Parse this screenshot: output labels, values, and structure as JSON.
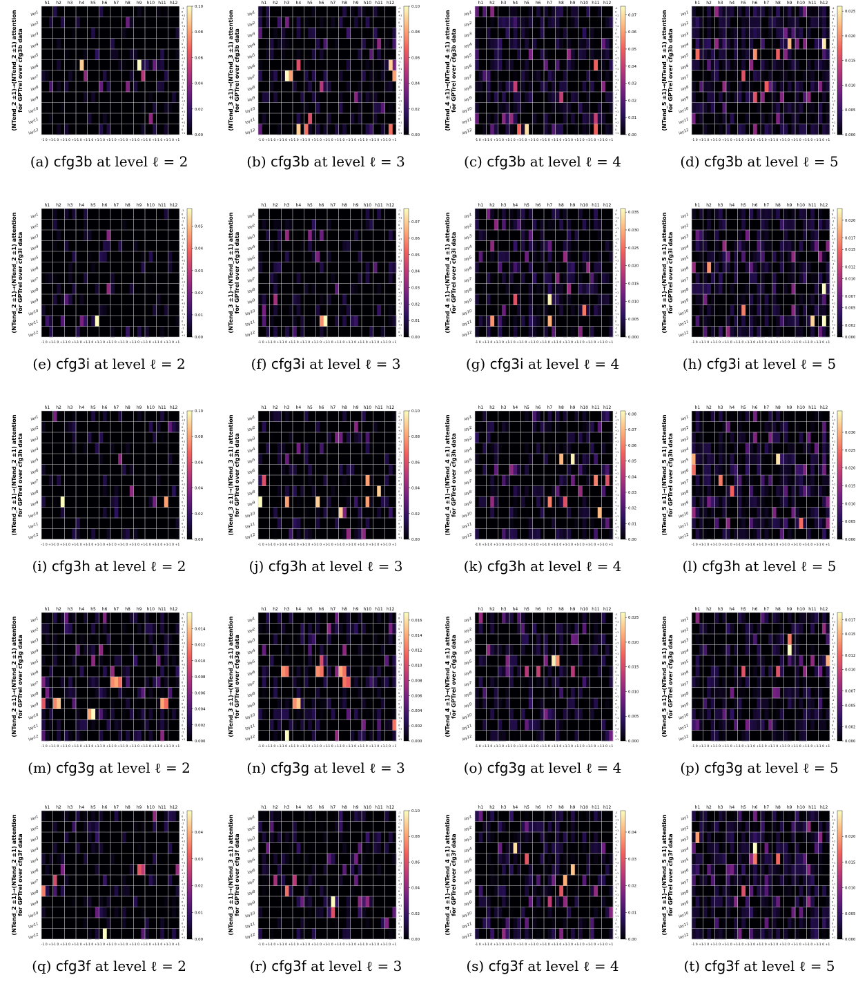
{
  "layout_grid": {
    "cols": 4,
    "rows": 5
  },
  "colormap": [
    "#000004",
    "#2c115f",
    "#721f81",
    "#b73779",
    "#f1605d",
    "#feb078",
    "#fcfdbf"
  ],
  "common": {
    "heads": [
      "h1",
      "h2",
      "h3",
      "h4",
      "h5",
      "h6",
      "h7",
      "h8",
      "h9",
      "h10",
      "h11",
      "h12"
    ],
    "layers": [
      "lay1",
      "lay2",
      "lay3",
      "lay4",
      "lay5",
      "lay6",
      "lay7",
      "lay8",
      "lay9",
      "lay10",
      "lay11",
      "lay12"
    ],
    "bottom_tick": "-1 0 +1",
    "colorbar_side_tick": [
      "-1",
      "0",
      "+1"
    ],
    "ylabel_line2_prefix": "for GPTrel over ",
    "ylabel_line2_suffix": " data"
  },
  "chart_data": [
    {
      "id": "a",
      "dataset": "cfg3b",
      "level": 2,
      "type": "heatmap",
      "ylabel": "(NTend_2 ±1)→(NTend_2 ±1) attention",
      "colorbar_ticks": [
        "0.10",
        "0.08",
        "0.06",
        "0.04",
        "0.02",
        "0.00"
      ],
      "vmax": 0.1,
      "seed": 11,
      "density": 0.18,
      "hot": [
        [
          5,
          3,
          1,
          0.09
        ],
        [
          5,
          8,
          1,
          0.1
        ],
        [
          6,
          3,
          2,
          0.04
        ],
        [
          6,
          8,
          2,
          0.05
        ],
        [
          7,
          5,
          0,
          0.03
        ]
      ]
    },
    {
      "id": "b",
      "dataset": "cfg3b",
      "level": 3,
      "type": "heatmap",
      "ylabel": "(NTend_3 ±1)→(NTend_3 ±1) attention",
      "colorbar_ticks": [
        "0.10",
        "0.08",
        "0.06",
        "0.04",
        "0.02",
        "0.00"
      ],
      "vmax": 0.1,
      "seed": 12,
      "density": 0.3,
      "hot": [
        [
          6,
          2,
          1,
          0.1
        ],
        [
          6,
          2,
          2,
          0.08
        ],
        [
          5,
          3,
          1,
          0.06
        ],
        [
          7,
          5,
          1,
          0.05
        ],
        [
          5,
          11,
          1,
          0.09
        ],
        [
          6,
          11,
          2,
          0.08
        ],
        [
          11,
          3,
          1,
          0.09
        ],
        [
          11,
          4,
          0,
          0.07
        ],
        [
          10,
          4,
          1,
          0.06
        ],
        [
          11,
          11,
          1,
          0.07
        ]
      ]
    },
    {
      "id": "c",
      "dataset": "cfg3b",
      "level": 4,
      "type": "heatmap",
      "ylabel": "(NTend_4 ±1)→(NTend_4 ±1) attention",
      "colorbar_ticks": [
        "0.07",
        "0.06",
        "0.05",
        "0.04",
        "0.03",
        "0.02",
        "0.01",
        "0.00"
      ],
      "vmax": 0.075,
      "seed": 13,
      "density": 0.45,
      "hot": [
        [
          11,
          4,
          1,
          0.07
        ],
        [
          11,
          3,
          2,
          0.05
        ],
        [
          5,
          10,
          1,
          0.05
        ],
        [
          7,
          3,
          1,
          0.04
        ],
        [
          11,
          10,
          1,
          0.05
        ],
        [
          10,
          10,
          1,
          0.04
        ],
        [
          8,
          7,
          1,
          0.04
        ]
      ]
    },
    {
      "id": "d",
      "dataset": "cfg3b",
      "level": 5,
      "type": "heatmap",
      "ylabel": "(NTend_5 ±1)→(NTend_5 ±1) attention",
      "colorbar_ticks": [
        "0.025",
        "0.020",
        "0.015",
        "0.010",
        "0.005",
        "0.000"
      ],
      "vmax": 0.026,
      "seed": 14,
      "density": 0.6,
      "hot": [
        [
          3,
          8,
          1,
          0.022
        ],
        [
          3,
          11,
          1,
          0.025
        ],
        [
          4,
          0,
          1,
          0.018
        ],
        [
          4,
          5,
          1,
          0.02
        ],
        [
          4,
          7,
          1,
          0.017
        ],
        [
          6,
          4,
          1,
          0.016
        ],
        [
          7,
          6,
          1,
          0.017
        ],
        [
          8,
          5,
          1,
          0.016
        ]
      ]
    },
    {
      "id": "e",
      "dataset": "cfg3i",
      "level": 2,
      "type": "heatmap",
      "ylabel": "(NTend_2 ±1)→(NTend_2 ±1) attention",
      "colorbar_ticks": [
        "0.05",
        "0.04",
        "0.03",
        "0.02",
        "0.01",
        "0.00"
      ],
      "vmax": 0.058,
      "seed": 21,
      "density": 0.16,
      "hot": [
        [
          10,
          4,
          2,
          0.058
        ],
        [
          10,
          3,
          1,
          0.02
        ],
        [
          8,
          2,
          0,
          0.015
        ],
        [
          10,
          0,
          1,
          0.012
        ]
      ]
    },
    {
      "id": "f",
      "dataset": "cfg3i",
      "level": 3,
      "type": "heatmap",
      "ylabel": "(NTend_3 ±1)→(NTend_3 ±1) attention",
      "colorbar_ticks": [
        "0.07",
        "0.06",
        "0.05",
        "0.04",
        "0.03",
        "0.02",
        "0.01",
        "0.00"
      ],
      "vmax": 0.078,
      "seed": 22,
      "density": 0.22,
      "hot": [
        [
          10,
          5,
          1,
          0.06
        ],
        [
          10,
          5,
          2,
          0.078
        ],
        [
          8,
          1,
          1,
          0.035
        ],
        [
          10,
          0,
          1,
          0.02
        ]
      ]
    },
    {
      "id": "g",
      "dataset": "cfg3i",
      "level": 4,
      "type": "heatmap",
      "ylabel": "(NTend_4 ±1)→(NTend_4 ±1) attention",
      "colorbar_ticks": [
        "0.035",
        "0.030",
        "0.025",
        "0.020",
        "0.015",
        "0.010",
        "0.005",
        "0.000"
      ],
      "vmax": 0.036,
      "seed": 23,
      "density": 0.45,
      "hot": [
        [
          8,
          6,
          1,
          0.035
        ],
        [
          10,
          6,
          1,
          0.03
        ],
        [
          10,
          1,
          1,
          0.028
        ],
        [
          9,
          9,
          1,
          0.026
        ],
        [
          8,
          3,
          1,
          0.022
        ]
      ]
    },
    {
      "id": "h",
      "dataset": "cfg3i",
      "level": 5,
      "type": "heatmap",
      "ylabel": "(NTend_5 ±1)→(NTend_5 ±1) attention",
      "colorbar_ticks": [
        "0.020",
        "0.017",
        "0.015",
        "0.012",
        "0.010",
        "0.007",
        "0.005",
        "0.002",
        "0.000"
      ],
      "vmax": 0.022,
      "seed": 24,
      "density": 0.55,
      "hot": [
        [
          7,
          11,
          1,
          0.022
        ],
        [
          10,
          11,
          1,
          0.022
        ],
        [
          10,
          10,
          1,
          0.02
        ],
        [
          5,
          1,
          1,
          0.017
        ],
        [
          9,
          4,
          1,
          0.016
        ]
      ]
    },
    {
      "id": "i",
      "dataset": "cfg3h",
      "level": 2,
      "type": "heatmap",
      "ylabel": "(NTend_2 ±1)→(NTend_2 ±1) attention",
      "colorbar_ticks": [
        "0.10",
        "0.08",
        "0.06",
        "0.04",
        "0.02",
        "0.00"
      ],
      "vmax": 0.1,
      "seed": 31,
      "density": 0.14,
      "hot": [
        [
          8,
          1,
          2,
          0.1
        ],
        [
          8,
          10,
          2,
          0.08
        ]
      ]
    },
    {
      "id": "j",
      "dataset": "cfg3h",
      "level": 3,
      "type": "heatmap",
      "ylabel": "(NTend_3 ±1)→(NTend_3 ±1) attention",
      "colorbar_ticks": [
        "0.10",
        "0.08",
        "0.06",
        "0.04",
        "0.02",
        "0.00"
      ],
      "vmax": 0.1,
      "seed": 32,
      "density": 0.2,
      "hot": [
        [
          8,
          0,
          0,
          0.1
        ],
        [
          8,
          2,
          1,
          0.08
        ],
        [
          8,
          5,
          0,
          0.09
        ],
        [
          8,
          9,
          1,
          0.08
        ],
        [
          7,
          10,
          1,
          0.09
        ],
        [
          6,
          9,
          1,
          0.08
        ],
        [
          9,
          7,
          0,
          0.09
        ],
        [
          6,
          0,
          1,
          0.06
        ]
      ]
    },
    {
      "id": "k",
      "dataset": "cfg3h",
      "level": 4,
      "type": "heatmap",
      "ylabel": "(NTend_4 ±1)→(NTend_4 ±1) attention",
      "colorbar_ticks": [
        "0.08",
        "0.07",
        "0.06",
        "0.05",
        "0.04",
        "0.03",
        "0.02",
        "0.01",
        "0.00"
      ],
      "vmax": 0.082,
      "seed": 33,
      "density": 0.35,
      "hot": [
        [
          4,
          7,
          1,
          0.07
        ],
        [
          4,
          8,
          1,
          0.08
        ],
        [
          6,
          10,
          1,
          0.06
        ],
        [
          8,
          6,
          1,
          0.06
        ],
        [
          8,
          7,
          2,
          0.05
        ],
        [
          9,
          10,
          2,
          0.07
        ],
        [
          6,
          11,
          1,
          0.05
        ]
      ]
    },
    {
      "id": "l",
      "dataset": "cfg3h",
      "level": 5,
      "type": "heatmap",
      "ylabel": "(NTend_5 ±1)→(NTend_5 ±1) attention",
      "colorbar_ticks": [
        "0.030",
        "0.025",
        "0.020",
        "0.015",
        "0.010",
        "0.005",
        "0.000"
      ],
      "vmax": 0.036,
      "seed": 34,
      "density": 0.55,
      "hot": [
        [
          4,
          0,
          0,
          0.03
        ],
        [
          4,
          7,
          1,
          0.034
        ],
        [
          5,
          0,
          0,
          0.025
        ],
        [
          6,
          2,
          1,
          0.026
        ],
        [
          7,
          3,
          1,
          0.024
        ],
        [
          10,
          9,
          1,
          0.025
        ]
      ]
    },
    {
      "id": "m",
      "dataset": "cfg3g",
      "level": 2,
      "type": "heatmap",
      "ylabel": "(NTend_2 ±1)→(NTend_2 ±1) attention",
      "colorbar_ticks": [
        "0.014",
        "0.012",
        "0.010",
        "0.008",
        "0.006",
        "0.004",
        "0.002",
        "0.000"
      ],
      "vmax": 0.016,
      "seed": 41,
      "density": 0.35,
      "hot": [
        [
          6,
          6,
          0,
          0.012
        ],
        [
          6,
          6,
          1,
          0.013
        ],
        [
          6,
          6,
          2,
          0.011
        ],
        [
          8,
          1,
          0,
          0.012
        ],
        [
          8,
          1,
          1,
          0.014
        ],
        [
          8,
          10,
          1,
          0.013
        ],
        [
          8,
          10,
          2,
          0.011
        ],
        [
          9,
          4,
          0,
          0.013
        ],
        [
          9,
          4,
          1,
          0.016
        ],
        [
          8,
          0,
          0,
          0.01
        ]
      ]
    },
    {
      "id": "n",
      "dataset": "cfg3g",
      "level": 3,
      "type": "heatmap",
      "ylabel": "(NTend_3 ±1)→(NTend_3 ±1) attention",
      "colorbar_ticks": [
        "0.016",
        "0.014",
        "0.012",
        "0.010",
        "0.008",
        "0.006",
        "0.004",
        "0.002",
        "0.000"
      ],
      "vmax": 0.017,
      "seed": 42,
      "density": 0.35,
      "hot": [
        [
          5,
          2,
          0,
          0.013
        ],
        [
          5,
          2,
          1,
          0.012
        ],
        [
          5,
          5,
          0,
          0.013
        ],
        [
          5,
          5,
          1,
          0.012
        ],
        [
          5,
          7,
          0,
          0.014
        ],
        [
          5,
          7,
          1,
          0.012
        ],
        [
          6,
          7,
          1,
          0.012
        ],
        [
          6,
          7,
          2,
          0.011
        ],
        [
          8,
          3,
          0,
          0.013
        ],
        [
          8,
          3,
          1,
          0.015
        ],
        [
          11,
          2,
          1,
          0.017
        ],
        [
          10,
          11,
          2,
          0.012
        ],
        [
          4,
          5,
          1,
          0.01
        ]
      ]
    },
    {
      "id": "o",
      "dataset": "cfg3g",
      "level": 4,
      "type": "heatmap",
      "ylabel": "(NTend_4 ±1)→(NTend_4 ±1) attention",
      "colorbar_ticks": [
        "0.025",
        "0.020",
        "0.015",
        "0.010",
        "0.005",
        "0.000"
      ],
      "vmax": 0.026,
      "seed": 43,
      "density": 0.35,
      "hot": [
        [
          4,
          6,
          2,
          0.025
        ],
        [
          4,
          7,
          0,
          0.02
        ],
        [
          5,
          5,
          1,
          0.014
        ],
        [
          5,
          4,
          1,
          0.013
        ],
        [
          5,
          8,
          1,
          0.013
        ]
      ]
    },
    {
      "id": "p",
      "dataset": "cfg3g",
      "level": 5,
      "type": "heatmap",
      "ylabel": "(NTend_5 ±1)→(NTend_5 ±1) attention",
      "colorbar_ticks": [
        "0.017",
        "0.015",
        "0.012",
        "0.010",
        "0.007",
        "0.005",
        "0.002",
        "0.000"
      ],
      "vmax": 0.018,
      "seed": 44,
      "density": 0.5,
      "hot": [
        [
          3,
          8,
          1,
          0.018
        ],
        [
          2,
          8,
          1,
          0.013
        ],
        [
          4,
          11,
          2,
          0.015
        ],
        [
          5,
          7,
          1,
          0.011
        ],
        [
          5,
          4,
          1,
          0.011
        ]
      ]
    },
    {
      "id": "q",
      "dataset": "cfg3f",
      "level": 2,
      "type": "heatmap",
      "ylabel": "(NTend_2 ±1)→(NTend_2 ±1) attention",
      "colorbar_ticks": [
        "0.04",
        "0.03",
        "0.02",
        "0.01",
        "0.00"
      ],
      "vmax": 0.048,
      "seed": 51,
      "density": 0.22,
      "hot": [
        [
          11,
          5,
          1,
          0.048
        ],
        [
          7,
          0,
          0,
          0.035
        ],
        [
          6,
          1,
          0,
          0.028
        ],
        [
          5,
          8,
          1,
          0.03
        ],
        [
          5,
          8,
          2,
          0.025
        ]
      ]
    },
    {
      "id": "r",
      "dataset": "cfg3f",
      "level": 3,
      "type": "heatmap",
      "ylabel": "(NTend_3 ±1)→(NTend_3 ±1) attention",
      "colorbar_ticks": [
        "0.10",
        "0.08",
        "0.06",
        "0.04",
        "0.02",
        "0.00"
      ],
      "vmax": 0.1,
      "seed": 52,
      "density": 0.3,
      "hot": [
        [
          8,
          6,
          1,
          0.1
        ],
        [
          9,
          6,
          1,
          0.06
        ],
        [
          7,
          2,
          1,
          0.07
        ],
        [
          6,
          3,
          0,
          0.05
        ],
        [
          6,
          1,
          1,
          0.045
        ],
        [
          8,
          9,
          1,
          0.04
        ]
      ]
    },
    {
      "id": "s",
      "dataset": "cfg3f",
      "level": 4,
      "type": "heatmap",
      "ylabel": "(NTend_4 ±1)→(NTend_4 ±1) attention",
      "colorbar_ticks": [
        "0.04",
        "0.03",
        "0.02",
        "0.01",
        "0.00"
      ],
      "vmax": 0.048,
      "seed": 53,
      "density": 0.45,
      "hot": [
        [
          3,
          3,
          1,
          0.045
        ],
        [
          5,
          8,
          1,
          0.042
        ],
        [
          6,
          7,
          2,
          0.04
        ],
        [
          4,
          4,
          1,
          0.03
        ],
        [
          7,
          7,
          1,
          0.03
        ],
        [
          8,
          6,
          1,
          0.025
        ]
      ]
    },
    {
      "id": "t",
      "dataset": "cfg3f",
      "level": 5,
      "type": "heatmap",
      "ylabel": "(NTend_5 ±1)→(NTend_5 ±1) attention",
      "colorbar_ticks": [
        "0.020",
        "0.015",
        "0.010",
        "0.005",
        "0.000"
      ],
      "vmax": 0.025,
      "seed": 54,
      "density": 0.55,
      "hot": [
        [
          3,
          5,
          1,
          0.025
        ],
        [
          2,
          0,
          1,
          0.02
        ],
        [
          4,
          5,
          1,
          0.018
        ],
        [
          4,
          7,
          1,
          0.017
        ],
        [
          7,
          4,
          1,
          0.015
        ]
      ]
    }
  ]
}
